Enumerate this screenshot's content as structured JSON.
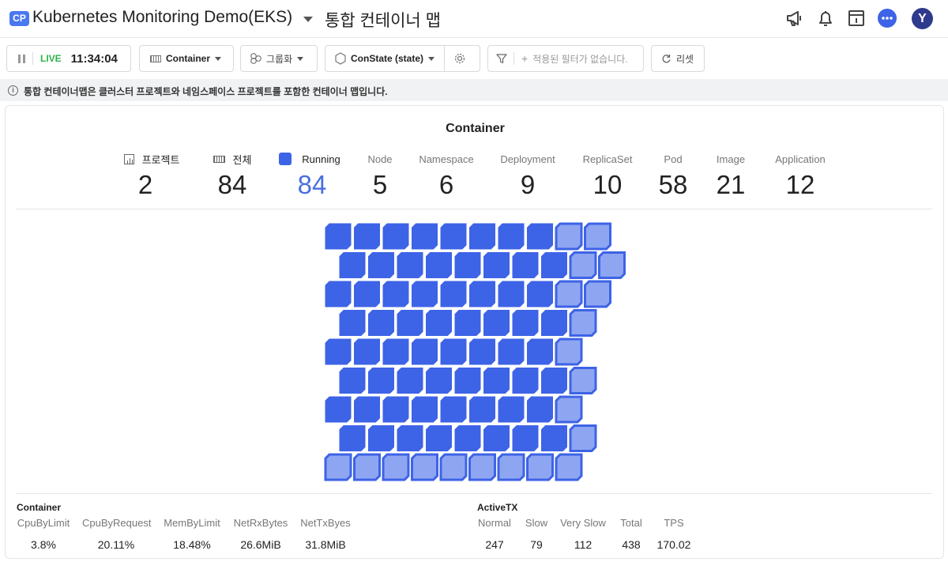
{
  "header": {
    "badge": "CP",
    "project_name": "Kubernetes Monitoring Demo(EKS)",
    "page_title": "통합 컨테이너 맵",
    "avatar_letter": "Y",
    "icons": [
      "megaphone-icon",
      "bell-icon",
      "document-icon",
      "chat-icon"
    ]
  },
  "toolbar": {
    "live_label": "LIVE",
    "time": "11:34:04",
    "container_select": "Container",
    "group_label": "그룹화",
    "state_select": "ConState (state)",
    "filter_placeholder": "적용된 필터가 없습니다.",
    "reset_label": "리셋"
  },
  "info": {
    "text": "통합 컨테이너맵은 클러스터 프로젝트와 네임스페이스 프로젝트를 포함한 컨테이너 맵입니다."
  },
  "panel": {
    "title": "Container",
    "stats": [
      {
        "label": "프로젝트",
        "value": "2"
      },
      {
        "label": "전체",
        "value": "84"
      },
      {
        "label": "Running",
        "value": "84"
      },
      {
        "label": "Node",
        "value": "5"
      },
      {
        "label": "Namespace",
        "value": "6"
      },
      {
        "label": "Deployment",
        "value": "9"
      },
      {
        "label": "ReplicaSet",
        "value": "10"
      },
      {
        "label": "Pod",
        "value": "58"
      },
      {
        "label": "Image",
        "value": "21"
      },
      {
        "label": "Application",
        "value": "12"
      }
    ],
    "colors": {
      "running": "#3d63e6",
      "running_light": "#8ea6f1"
    }
  },
  "container_metrics": {
    "title": "Container",
    "columns": [
      {
        "label": "CpuByLimit",
        "value": "3.8%"
      },
      {
        "label": "CpuByRequest",
        "value": "20.11%"
      },
      {
        "label": "MemByLimit",
        "value": "18.48%"
      },
      {
        "label": "NetRxBytes",
        "value": "26.6MiB"
      },
      {
        "label": "NetTxByes",
        "value": "31.8MiB"
      }
    ]
  },
  "activetx": {
    "title": "ActiveTX",
    "columns": [
      {
        "label": "Normal",
        "value": "247"
      },
      {
        "label": "Slow",
        "value": "79"
      },
      {
        "label": "Very Slow",
        "value": "112"
      },
      {
        "label": "Total",
        "value": "438"
      },
      {
        "label": "TPS",
        "value": "170.02"
      }
    ]
  }
}
